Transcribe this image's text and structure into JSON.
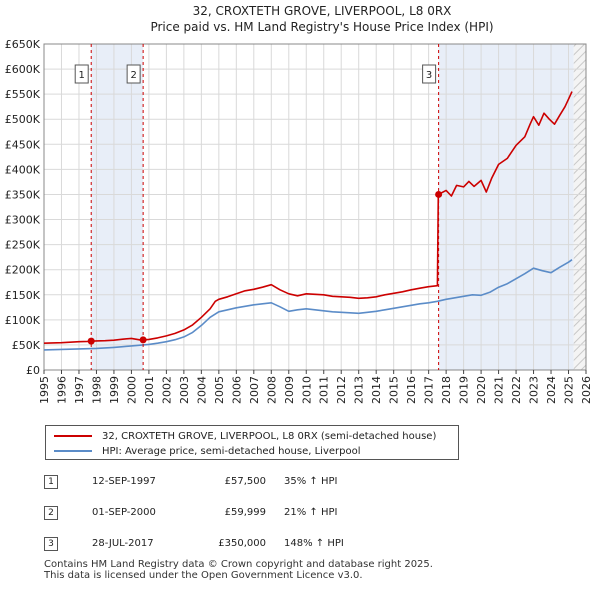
{
  "chart_data": {
    "type": "line",
    "title": "32, CROXTETH GROVE, LIVERPOOL, L8 0RX",
    "subtitle": "Price paid vs. HM Land Registry's House Price Index (HPI)",
    "xlabel": "",
    "ylabel": "",
    "xlim": [
      1995,
      2026
    ],
    "ylim": [
      0,
      650000
    ],
    "grid": true,
    "y_ticks": [
      {
        "value": 0,
        "label": "£0"
      },
      {
        "value": 50000,
        "label": "£50K"
      },
      {
        "value": 100000,
        "label": "£100K"
      },
      {
        "value": 150000,
        "label": "£150K"
      },
      {
        "value": 200000,
        "label": "£200K"
      },
      {
        "value": 250000,
        "label": "£250K"
      },
      {
        "value": 300000,
        "label": "£300K"
      },
      {
        "value": 350000,
        "label": "£350K"
      },
      {
        "value": 400000,
        "label": "£400K"
      },
      {
        "value": 450000,
        "label": "£450K"
      },
      {
        "value": 500000,
        "label": "£500K"
      },
      {
        "value": 550000,
        "label": "£550K"
      },
      {
        "value": 600000,
        "label": "£600K"
      },
      {
        "value": 650000,
        "label": "£650K"
      }
    ],
    "x_ticks": [
      "1995",
      "1996",
      "1997",
      "1998",
      "1999",
      "2000",
      "2001",
      "2002",
      "2003",
      "2004",
      "2005",
      "2006",
      "2007",
      "2008",
      "2009",
      "2010",
      "2011",
      "2012",
      "2013",
      "2014",
      "2015",
      "2016",
      "2017",
      "2018",
      "2019",
      "2020",
      "2021",
      "2022",
      "2023",
      "2024",
      "2025",
      "2026"
    ],
    "series": [
      {
        "name": "32, CROXTETH GROVE, LIVERPOOL, L8 0RX (semi-detached house)",
        "color": "#cc0000",
        "points": [
          [
            1995.0,
            53500
          ],
          [
            1995.5,
            54000
          ],
          [
            1996.0,
            54500
          ],
          [
            1996.5,
            55500
          ],
          [
            1997.0,
            56500
          ],
          [
            1997.5,
            57000
          ],
          [
            1997.7,
            57500
          ],
          [
            1998.0,
            58000
          ],
          [
            1998.5,
            58500
          ],
          [
            1999.0,
            59500
          ],
          [
            1999.5,
            61500
          ],
          [
            2000.0,
            63000
          ],
          [
            2000.5,
            60000
          ],
          [
            2000.67,
            59999
          ],
          [
            2001.0,
            61000
          ],
          [
            2001.5,
            64000
          ],
          [
            2002.0,
            68000
          ],
          [
            2002.5,
            73000
          ],
          [
            2003.0,
            80000
          ],
          [
            2003.5,
            90000
          ],
          [
            2004.0,
            105000
          ],
          [
            2004.5,
            122000
          ],
          [
            2004.8,
            137000
          ],
          [
            2005.0,
            141000
          ],
          [
            2005.5,
            146000
          ],
          [
            2006.0,
            152000
          ],
          [
            2006.5,
            158000
          ],
          [
            2007.0,
            161000
          ],
          [
            2007.5,
            165000
          ],
          [
            2008.0,
            170000
          ],
          [
            2008.5,
            160000
          ],
          [
            2009.0,
            152000
          ],
          [
            2009.5,
            148000
          ],
          [
            2010.0,
            152000
          ],
          [
            2010.5,
            151000
          ],
          [
            2011.0,
            150000
          ],
          [
            2011.5,
            147000
          ],
          [
            2012.0,
            146000
          ],
          [
            2012.5,
            145000
          ],
          [
            2013.0,
            143000
          ],
          [
            2013.5,
            144000
          ],
          [
            2014.0,
            146000
          ],
          [
            2014.5,
            150000
          ],
          [
            2015.0,
            153000
          ],
          [
            2015.5,
            156000
          ],
          [
            2016.0,
            160000
          ],
          [
            2016.5,
            163000
          ],
          [
            2017.0,
            166000
          ],
          [
            2017.5,
            168000
          ],
          [
            2017.55,
            350000
          ],
          [
            2018.0,
            358000
          ],
          [
            2018.3,
            347000
          ],
          [
            2018.6,
            368000
          ],
          [
            2019.0,
            365000
          ],
          [
            2019.3,
            376000
          ],
          [
            2019.6,
            366000
          ],
          [
            2020.0,
            378000
          ],
          [
            2020.3,
            355000
          ],
          [
            2020.6,
            382000
          ],
          [
            2021.0,
            410000
          ],
          [
            2021.5,
            422000
          ],
          [
            2022.0,
            448000
          ],
          [
            2022.5,
            465000
          ],
          [
            2022.8,
            490000
          ],
          [
            2023.0,
            505000
          ],
          [
            2023.3,
            488000
          ],
          [
            2023.6,
            512000
          ],
          [
            2023.9,
            500000
          ],
          [
            2024.2,
            490000
          ],
          [
            2024.5,
            508000
          ],
          [
            2024.8,
            525000
          ],
          [
            2025.0,
            540000
          ],
          [
            2025.2,
            555000
          ]
        ]
      },
      {
        "name": "HPI: Average price, semi-detached house, Liverpool",
        "color": "#5b8cc8",
        "points": [
          [
            1995.0,
            40000
          ],
          [
            1995.5,
            40500
          ],
          [
            1996.0,
            41000
          ],
          [
            1996.5,
            41500
          ],
          [
            1997.0,
            42000
          ],
          [
            1997.5,
            42500
          ],
          [
            1998.0,
            43000
          ],
          [
            1998.5,
            44000
          ],
          [
            1999.0,
            45000
          ],
          [
            1999.5,
            46500
          ],
          [
            2000.0,
            48000
          ],
          [
            2000.5,
            49500
          ],
          [
            2001.0,
            51000
          ],
          [
            2001.5,
            53500
          ],
          [
            2002.0,
            56500
          ],
          [
            2002.5,
            60500
          ],
          [
            2003.0,
            66000
          ],
          [
            2003.5,
            75000
          ],
          [
            2004.0,
            89000
          ],
          [
            2004.5,
            105000
          ],
          [
            2005.0,
            116000
          ],
          [
            2005.5,
            120000
          ],
          [
            2006.0,
            124000
          ],
          [
            2006.5,
            127000
          ],
          [
            2007.0,
            130000
          ],
          [
            2007.5,
            132000
          ],
          [
            2008.0,
            134000
          ],
          [
            2008.5,
            126000
          ],
          [
            2009.0,
            117000
          ],
          [
            2009.5,
            120000
          ],
          [
            2010.0,
            122000
          ],
          [
            2010.5,
            120000
          ],
          [
            2011.0,
            118000
          ],
          [
            2011.5,
            116000
          ],
          [
            2012.0,
            115000
          ],
          [
            2012.5,
            114000
          ],
          [
            2013.0,
            113000
          ],
          [
            2013.5,
            115000
          ],
          [
            2014.0,
            117000
          ],
          [
            2014.5,
            120000
          ],
          [
            2015.0,
            123000
          ],
          [
            2015.5,
            126000
          ],
          [
            2016.0,
            129000
          ],
          [
            2016.5,
            132000
          ],
          [
            2017.0,
            134000
          ],
          [
            2017.5,
            137000
          ],
          [
            2018.0,
            141000
          ],
          [
            2018.5,
            144000
          ],
          [
            2019.0,
            147000
          ],
          [
            2019.5,
            150000
          ],
          [
            2020.0,
            149000
          ],
          [
            2020.5,
            155000
          ],
          [
            2021.0,
            165000
          ],
          [
            2021.5,
            172000
          ],
          [
            2022.0,
            182000
          ],
          [
            2022.5,
            192000
          ],
          [
            2023.0,
            203000
          ],
          [
            2023.5,
            198000
          ],
          [
            2024.0,
            194000
          ],
          [
            2024.5,
            205000
          ],
          [
            2025.0,
            215000
          ],
          [
            2025.2,
            220000
          ]
        ]
      }
    ],
    "sales": [
      {
        "id": "1",
        "x": 1997.7,
        "value": 57500
      },
      {
        "id": "2",
        "x": 2000.67,
        "value": 59999
      },
      {
        "id": "3",
        "x": 2017.57,
        "value": 350000
      }
    ],
    "shaded_ranges": [
      [
        1997.7,
        2000.67
      ],
      [
        2017.57,
        2025.3
      ]
    ],
    "hatched_range": [
      2025.3,
      2026
    ]
  },
  "legend": [
    {
      "label": "32, CROXTETH GROVE, LIVERPOOL, L8 0RX (semi-detached house)",
      "color": "#cc0000"
    },
    {
      "label": "HPI: Average price, semi-detached house, Liverpool",
      "color": "#5b8cc8"
    }
  ],
  "transactions": [
    {
      "num": "1",
      "date": "12-SEP-1997",
      "price": "£57,500",
      "hpi": "35% ↑ HPI"
    },
    {
      "num": "2",
      "date": "01-SEP-2000",
      "price": "£59,999",
      "hpi": "21% ↑ HPI"
    },
    {
      "num": "3",
      "date": "28-JUL-2017",
      "price": "£350,000",
      "hpi": "148% ↑ HPI"
    }
  ],
  "footer": {
    "line1": "Contains HM Land Registry data © Crown copyright and database right 2025.",
    "line2": "This data is licensed under the Open Government Licence v3.0."
  }
}
